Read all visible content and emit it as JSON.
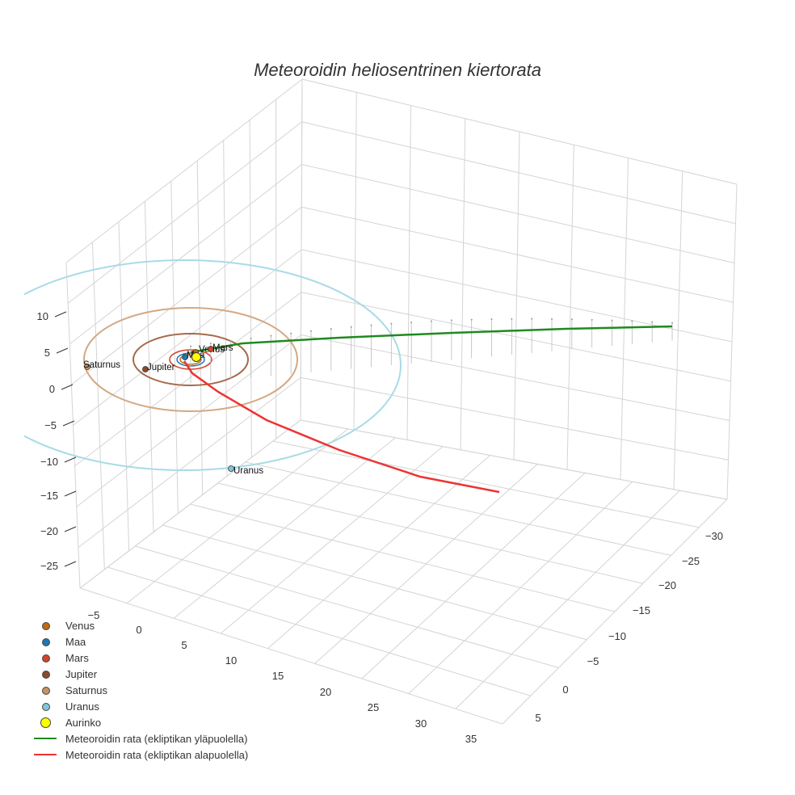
{
  "chart_data": {
    "type": "scatter3d",
    "title": "Meteoroidin heliosentrinen kiertorata",
    "xlabel": "",
    "ylabel": "",
    "zlabel": "",
    "z_ticks": [
      "10",
      "5",
      "0",
      "−5",
      "−10",
      "−15",
      "−20",
      "−25"
    ],
    "x_ticks": [
      "−5",
      "0",
      "5",
      "10",
      "15",
      "20",
      "25",
      "30",
      "35"
    ],
    "y_ticks": [
      "−30",
      "−25",
      "−20",
      "−15",
      "−10",
      "−5",
      "0",
      "5"
    ],
    "grid": true,
    "legend_position": "bottom-left",
    "series": [
      {
        "name": "Venus",
        "kind": "marker",
        "color": "#c26a0f",
        "label": "Venus",
        "orbit_color": "#c26a0f"
      },
      {
        "name": "Maa",
        "kind": "marker",
        "color": "#1f77b4",
        "label": "Maa",
        "orbit_color": "#1f77b4"
      },
      {
        "name": "Mars",
        "kind": "marker",
        "color": "#d2452a",
        "label": "Mars",
        "orbit_color": "#d2452a"
      },
      {
        "name": "Jupiter",
        "kind": "marker",
        "color": "#8b4a2b",
        "label": "Jupiter",
        "orbit_color": "#a56a4a"
      },
      {
        "name": "Saturnus",
        "kind": "marker",
        "color": "#c8925f",
        "label": "Saturnus",
        "orbit_color": "#d2a986"
      },
      {
        "name": "Uranus",
        "kind": "marker",
        "color": "#7fc6d8",
        "label": "Uranus",
        "orbit_color": "#a8dbe6"
      },
      {
        "name": "Aurinko",
        "kind": "sun",
        "color": "#ffff00"
      },
      {
        "name": "Meteoroidin rata (ekliptikan yläpuolella)",
        "kind": "line",
        "color": "#1f8a1f"
      },
      {
        "name": "Meteoroidin rata (ekliptikan alapuolella)",
        "kind": "line",
        "color": "#ee3333"
      }
    ]
  }
}
